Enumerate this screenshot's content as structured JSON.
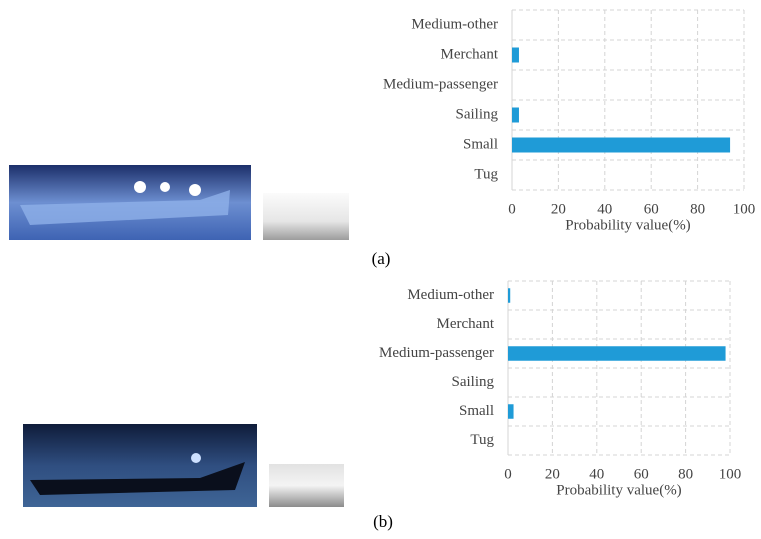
{
  "chart_data": [
    {
      "type": "barh",
      "caption": "(a)",
      "categories": [
        "Medium-other",
        "Merchant",
        "Medium-passenger",
        "Sailing",
        "Small",
        "Tug"
      ],
      "values": [
        0,
        3,
        0,
        3,
        94,
        0
      ],
      "color": "#1f9bd7",
      "xlabel": "Probability value(%)",
      "xlim": [
        0,
        100
      ],
      "xticks": [
        0,
        20,
        40,
        60,
        80,
        100
      ],
      "grid": true
    },
    {
      "type": "barh",
      "caption": "(b)",
      "categories": [
        "Medium-other",
        "Merchant",
        "Medium-passenger",
        "Sailing",
        "Small",
        "Tug"
      ],
      "values": [
        1,
        0,
        98,
        0,
        2.5,
        0
      ],
      "color": "#1f9bd7",
      "xlabel": "Probability value(%)",
      "xlim": [
        0,
        100
      ],
      "xticks": [
        0,
        20,
        40,
        60,
        80,
        100
      ],
      "grid": true
    }
  ]
}
